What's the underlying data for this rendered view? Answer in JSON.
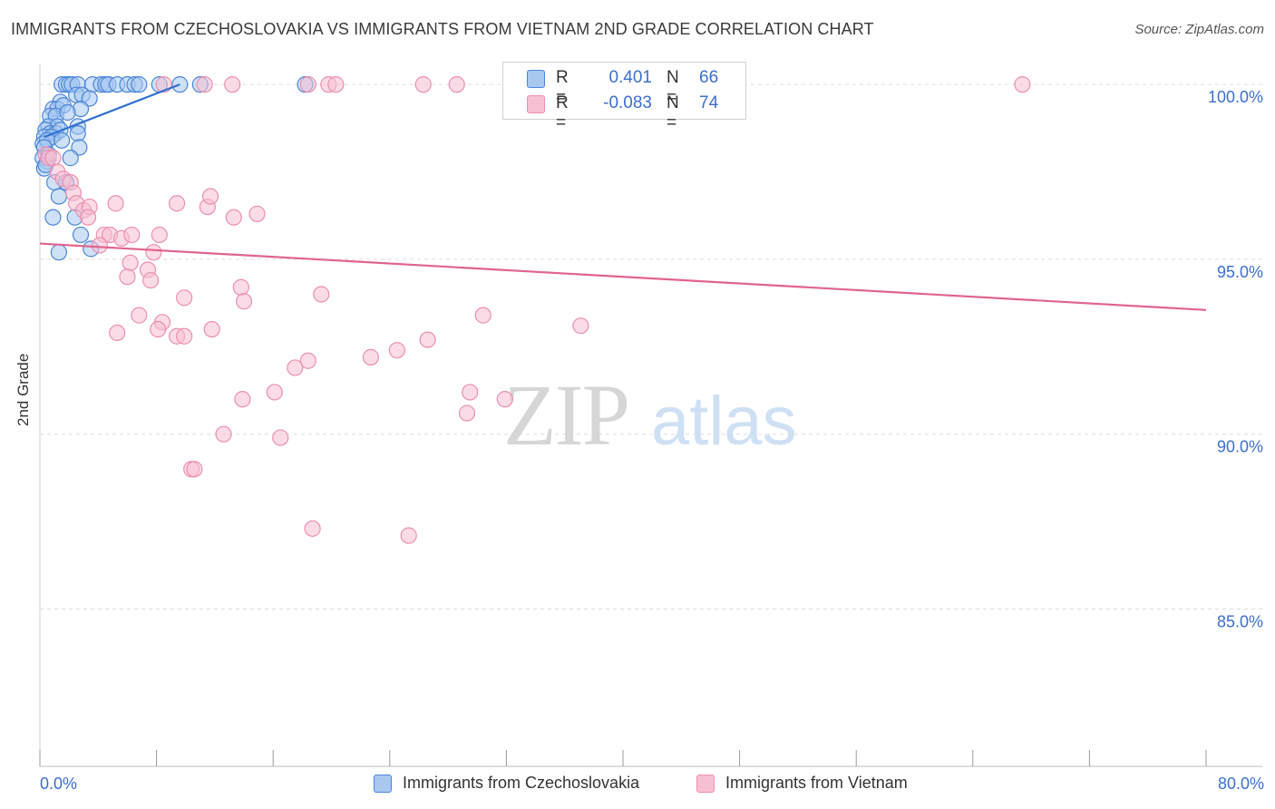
{
  "title": "IMMIGRANTS FROM CZECHOSLOVAKIA VS IMMIGRANTS FROM VIETNAM 2ND GRADE CORRELATION CHART",
  "source": "Source: ZipAtlas.com",
  "watermark": {
    "zip": "ZIP",
    "atlas": "atlas"
  },
  "legend": {
    "series1": {
      "r_label": "R =",
      "r_value": "0.401",
      "n_label": "N =",
      "n_value": "66"
    },
    "series2": {
      "r_label": "R =",
      "r_value": "-0.083",
      "n_label": "N =",
      "n_value": "74"
    }
  },
  "colors": {
    "blue_fill": "#a8c8f0",
    "blue_stroke": "#4a86d8",
    "blue_line": "#2f6fd0",
    "pink_fill": "#f7c0d2",
    "pink_stroke": "#ec8fae",
    "pink_line": "#e0648e",
    "axis_text": "#3b6fcf",
    "grid": "#dcdcdc"
  },
  "chart_data": {
    "type": "scatter",
    "title": "IMMIGRANTS FROM CZECHOSLOVAKIA VS IMMIGRANTS FROM VIETNAM 2ND GRADE CORRELATION CHART",
    "xlabel": "",
    "ylabel": "2nd Grade",
    "xlim": [
      0,
      80
    ],
    "ylim": [
      80.5,
      100.6
    ],
    "x_tick_labels": [
      {
        "value": 0,
        "label": "0.0%"
      },
      {
        "value": 80,
        "label": "80.0%"
      }
    ],
    "y_tick_labels": [
      {
        "value": 100,
        "label": "100.0%"
      },
      {
        "value": 95,
        "label": "95.0%"
      },
      {
        "value": 90,
        "label": "90.0%"
      },
      {
        "value": 85,
        "label": "85.0%"
      }
    ],
    "x_minor_ticks": [
      0,
      8,
      16,
      24,
      32,
      40,
      48,
      56,
      64,
      72,
      80
    ],
    "series": [
      {
        "name": "Immigrants from Czechoslovakia",
        "color": "blue",
        "r": 0.401,
        "n": 66,
        "trend": {
          "x": [
            0.3,
            9.6
          ],
          "y": [
            98.5,
            100.0
          ]
        },
        "points": [
          [
            1.5,
            100
          ],
          [
            1.8,
            100
          ],
          [
            2.0,
            100
          ],
          [
            2.2,
            100
          ],
          [
            2.6,
            100
          ],
          [
            3.6,
            100
          ],
          [
            4.2,
            100
          ],
          [
            4.5,
            100
          ],
          [
            4.7,
            100
          ],
          [
            5.3,
            100
          ],
          [
            6.0,
            100
          ],
          [
            6.5,
            100
          ],
          [
            6.8,
            100
          ],
          [
            8.2,
            100
          ],
          [
            9.6,
            100
          ],
          [
            11.0,
            100
          ],
          [
            18.2,
            100
          ],
          [
            2.5,
            99.7
          ],
          [
            2.9,
            99.7
          ],
          [
            1.4,
            99.5
          ],
          [
            3.4,
            99.6
          ],
          [
            0.9,
            99.3
          ],
          [
            1.2,
            99.3
          ],
          [
            1.6,
            99.4
          ],
          [
            2.8,
            99.3
          ],
          [
            0.7,
            99.1
          ],
          [
            1.1,
            99.1
          ],
          [
            1.9,
            99.2
          ],
          [
            0.6,
            98.8
          ],
          [
            1.2,
            98.8
          ],
          [
            2.6,
            98.8
          ],
          [
            0.4,
            98.7
          ],
          [
            0.7,
            98.6
          ],
          [
            1.1,
            98.6
          ],
          [
            1.4,
            98.7
          ],
          [
            2.6,
            98.6
          ],
          [
            0.3,
            98.5
          ],
          [
            0.8,
            98.5
          ],
          [
            0.2,
            98.3
          ],
          [
            0.5,
            98.4
          ],
          [
            1.5,
            98.4
          ],
          [
            2.7,
            98.2
          ],
          [
            0.3,
            98.2
          ],
          [
            0.2,
            97.9
          ],
          [
            0.5,
            97.8
          ],
          [
            2.1,
            97.9
          ],
          [
            0.3,
            97.6
          ],
          [
            1.0,
            97.2
          ],
          [
            1.8,
            97.2
          ],
          [
            1.3,
            96.8
          ],
          [
            0.9,
            96.2
          ],
          [
            2.4,
            96.2
          ],
          [
            2.8,
            95.7
          ],
          [
            1.3,
            95.2
          ],
          [
            3.5,
            95.3
          ],
          [
            0.6,
            98.0
          ],
          [
            0.4,
            97.7
          ]
        ]
      },
      {
        "name": "Immigrants from Vietnam",
        "color": "pink",
        "r": -0.083,
        "n": 74,
        "trend": {
          "x": [
            0,
            80
          ],
          "y": [
            95.45,
            93.55
          ]
        },
        "points": [
          [
            8.5,
            100
          ],
          [
            11.3,
            100
          ],
          [
            13.2,
            100
          ],
          [
            18.4,
            100
          ],
          [
            19.8,
            100
          ],
          [
            20.3,
            100
          ],
          [
            26.3,
            100
          ],
          [
            28.6,
            100
          ],
          [
            42.8,
            100
          ],
          [
            67.4,
            100
          ],
          [
            0.4,
            98.0
          ],
          [
            0.6,
            97.9
          ],
          [
            0.9,
            97.9
          ],
          [
            1.2,
            97.5
          ],
          [
            1.6,
            97.3
          ],
          [
            2.1,
            97.2
          ],
          [
            2.3,
            96.9
          ],
          [
            2.5,
            96.6
          ],
          [
            3.0,
            96.4
          ],
          [
            3.4,
            96.5
          ],
          [
            5.2,
            96.6
          ],
          [
            3.3,
            96.2
          ],
          [
            9.4,
            96.6
          ],
          [
            11.5,
            96.5
          ],
          [
            11.7,
            96.8
          ],
          [
            13.3,
            96.2
          ],
          [
            14.9,
            96.3
          ],
          [
            4.4,
            95.7
          ],
          [
            4.8,
            95.7
          ],
          [
            5.6,
            95.6
          ],
          [
            6.3,
            95.7
          ],
          [
            8.2,
            95.7
          ],
          [
            4.1,
            95.4
          ],
          [
            7.8,
            95.2
          ],
          [
            6.2,
            94.9
          ],
          [
            7.4,
            94.7
          ],
          [
            6.0,
            94.5
          ],
          [
            7.6,
            94.4
          ],
          [
            13.8,
            94.2
          ],
          [
            19.3,
            94.0
          ],
          [
            9.9,
            93.9
          ],
          [
            14.0,
            93.8
          ],
          [
            30.4,
            93.4
          ],
          [
            26.6,
            92.7
          ],
          [
            37.1,
            93.1
          ],
          [
            6.8,
            93.4
          ],
          [
            8.4,
            93.2
          ],
          [
            8.1,
            93.0
          ],
          [
            11.8,
            93.0
          ],
          [
            5.3,
            92.9
          ],
          [
            9.4,
            92.8
          ],
          [
            9.9,
            92.8
          ],
          [
            24.5,
            92.4
          ],
          [
            22.7,
            92.2
          ],
          [
            18.4,
            92.1
          ],
          [
            17.5,
            91.9
          ],
          [
            16.1,
            91.2
          ],
          [
            29.5,
            91.2
          ],
          [
            13.9,
            91.0
          ],
          [
            31.9,
            91.0
          ],
          [
            29.3,
            90.6
          ],
          [
            12.6,
            90.0
          ],
          [
            16.5,
            89.9
          ],
          [
            10.4,
            89.0
          ],
          [
            10.6,
            89.0
          ],
          [
            18.7,
            87.3
          ],
          [
            25.3,
            87.1
          ]
        ]
      }
    ]
  },
  "bottom_legend": {
    "series1": "Immigrants from Czechoslovakia",
    "series2": "Immigrants from Vietnam"
  }
}
